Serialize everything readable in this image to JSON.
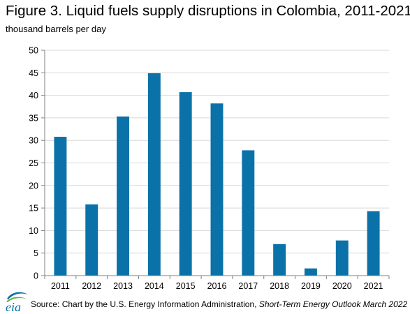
{
  "title": "Figure 3. Liquid fuels supply disruptions in Colombia, 2011-2021",
  "subtitle": "thousand barrels per day",
  "source_prefix": "Source: Chart by the U.S. Energy Information Administration, ",
  "source_publication": "Short-Term Energy Outlook March 2022",
  "logo_text": "eia",
  "colors": {
    "bar": "#0A72A8",
    "grid": "#D9D9D9",
    "axis": "#808080"
  },
  "chart_data": {
    "type": "bar",
    "title": "Figure 3. Liquid fuels supply disruptions in Colombia, 2011-2021",
    "ylabel": "thousand barrels per day",
    "xlabel": "",
    "categories": [
      "2011",
      "2012",
      "2013",
      "2014",
      "2015",
      "2016",
      "2017",
      "2018",
      "2019",
      "2020",
      "2021"
    ],
    "values": [
      30.8,
      15.8,
      35.3,
      44.9,
      40.7,
      38.2,
      27.8,
      7.0,
      1.6,
      7.8,
      14.3
    ],
    "ylim": [
      0,
      50
    ],
    "yticks": [
      0,
      5,
      10,
      15,
      20,
      25,
      30,
      35,
      40,
      45,
      50
    ],
    "grid": true,
    "legend": "none"
  }
}
